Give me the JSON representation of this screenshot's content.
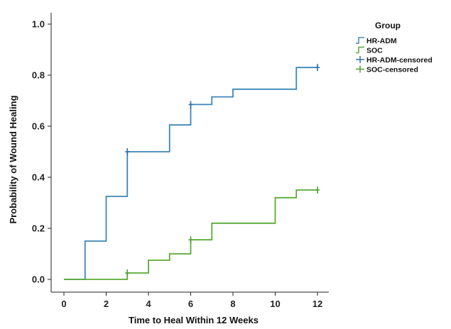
{
  "chart_data": {
    "type": "line",
    "title": "",
    "xlabel": "Time to Heal Within 12 Weeks",
    "ylabel": "Probability of Wound Healing",
    "xlim": [
      0,
      12
    ],
    "ylim": [
      0,
      1.0
    ],
    "xticks": [
      "0",
      "2",
      "4",
      "6",
      "8",
      "10",
      "12"
    ],
    "yticks": [
      "0.0",
      "0.2",
      "0.4",
      "0.6",
      "0.8",
      "1.0"
    ],
    "grid": false,
    "legend_position": "top-right",
    "legend_title": "Group",
    "series": [
      {
        "name": "HR-ADM",
        "color": "#3d86b8",
        "step": true,
        "x": [
          0,
          1,
          2,
          3,
          5,
          6,
          7,
          8,
          11,
          12
        ],
        "y": [
          0,
          0.15,
          0.325,
          0.5,
          0.605,
          0.685,
          0.715,
          0.745,
          0.83,
          0.83
        ]
      },
      {
        "name": "SOC",
        "color": "#5aaa36",
        "step": true,
        "x": [
          0,
          3,
          4,
          5,
          6,
          7,
          10,
          11,
          12
        ],
        "y": [
          0,
          0.025,
          0.075,
          0.1,
          0.155,
          0.22,
          0.32,
          0.35,
          0.35
        ]
      }
    ],
    "censored": [
      {
        "name": "HR-ADM-censored",
        "color": "#2f6fae",
        "points": [
          [
            3,
            0.5
          ],
          [
            6,
            0.685
          ],
          [
            12,
            0.83
          ]
        ]
      },
      {
        "name": "SOC-censored",
        "color": "#4fa02e",
        "points": [
          [
            3,
            0.025
          ],
          [
            6,
            0.155
          ],
          [
            12,
            0.35
          ]
        ]
      }
    ]
  }
}
